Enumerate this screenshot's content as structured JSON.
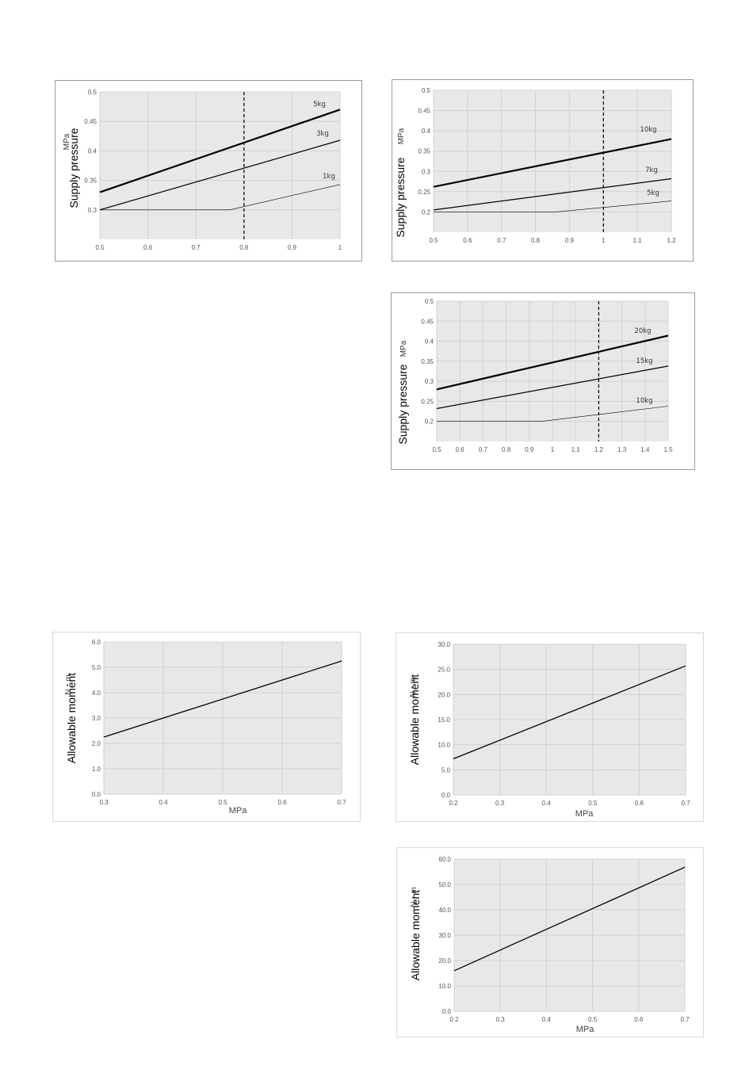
{
  "chart_data": [
    {
      "type": "line",
      "ylabel": "Supply pressure",
      "yunit": "MPa",
      "xlabel": "",
      "xlim": [
        0.5,
        1
      ],
      "ylim": [
        0.25,
        0.5
      ],
      "xticks": [
        "0.5",
        "0.6",
        "0.7",
        "0.8",
        "0.9",
        "1"
      ],
      "yticks": [
        "0.3",
        "0.35",
        "0.4",
        "0.45",
        "0.5"
      ],
      "grid": true,
      "marker_x": 0.8,
      "series": [
        {
          "name": "5kg",
          "x": [
            0.5,
            1
          ],
          "y": [
            0.33,
            0.47
          ],
          "width": 2.2
        },
        {
          "name": "3kg",
          "x": [
            0.5,
            1
          ],
          "y": [
            0.3,
            0.418
          ],
          "width": 1.2
        },
        {
          "name": "1kg",
          "x": [
            0.5,
            0.77,
            1
          ],
          "y": [
            0.3,
            0.3,
            0.343
          ],
          "width": 0.6
        }
      ]
    },
    {
      "type": "line",
      "ylabel": "Supply pressure",
      "yunit": "MPa",
      "xlabel": "",
      "xlim": [
        0.5,
        1.2
      ],
      "ylim": [
        0.15,
        0.5
      ],
      "xticks": [
        "0.5",
        "0.6",
        "0.7",
        "0.8",
        "0.9",
        "1",
        "1.1",
        "1.2"
      ],
      "yticks": [
        "0.2",
        "0.25",
        "0.3",
        "0.35",
        "0.4",
        "0.45",
        "0.5"
      ],
      "grid": true,
      "marker_x": 1,
      "series": [
        {
          "name": "10kg",
          "x": [
            0.5,
            1.2
          ],
          "y": [
            0.262,
            0.38
          ],
          "width": 2.2
        },
        {
          "name": "7kg",
          "x": [
            0.5,
            1.2
          ],
          "y": [
            0.205,
            0.282
          ],
          "width": 1.2
        },
        {
          "name": "5kg",
          "x": [
            0.5,
            0.86,
            1.2
          ],
          "y": [
            0.2,
            0.2,
            0.227
          ],
          "width": 0.6
        }
      ]
    },
    {
      "type": "line",
      "ylabel": "Supply pressure",
      "yunit": "MPa",
      "xlabel": "",
      "xlim": [
        0.5,
        1.5
      ],
      "ylim": [
        0.15,
        0.5
      ],
      "xticks": [
        "0.5",
        "0.6",
        "0.7",
        "0.8",
        "0.9",
        "1",
        "1.1",
        "1.2",
        "1.3",
        "1.4",
        "1.5"
      ],
      "yticks": [
        "0.2",
        "0.25",
        "0.3",
        "0.35",
        "0.4",
        "0.45",
        "0.5"
      ],
      "grid": true,
      "marker_x": 1.2,
      "series": [
        {
          "name": "20kg",
          "x": [
            0.5,
            1.5
          ],
          "y": [
            0.28,
            0.414
          ],
          "width": 2.2
        },
        {
          "name": "15kg",
          "x": [
            0.5,
            1.5
          ],
          "y": [
            0.232,
            0.338
          ],
          "width": 1.2
        },
        {
          "name": "10kg",
          "x": [
            0.5,
            0.95,
            1.5
          ],
          "y": [
            0.2,
            0.2,
            0.238
          ],
          "width": 0.6
        }
      ]
    },
    {
      "type": "line",
      "ylabel": "Allowable moment",
      "yunit": "N・m",
      "xlabel": "MPa",
      "xlim": [
        0.3,
        0.7
      ],
      "ylim": [
        0,
        6
      ],
      "xticks": [
        "0.3",
        "0.4",
        "0.5",
        "0.6",
        "0.7"
      ],
      "yticks": [
        "0.0",
        "1.0",
        "2.0",
        "3.0",
        "4.0",
        "5.0",
        "6.0"
      ],
      "grid": true,
      "series": [
        {
          "name": "",
          "x": [
            0.3,
            0.7
          ],
          "y": [
            2.25,
            5.25
          ],
          "width": 1.3
        }
      ]
    },
    {
      "type": "line",
      "ylabel": "Allowable moment",
      "yunit": "N・m",
      "xlabel": "MPa",
      "xlim": [
        0.2,
        0.7
      ],
      "ylim": [
        0,
        30
      ],
      "xticks": [
        "0.2",
        "0.3",
        "0.4",
        "0.5",
        "0.6",
        "0.7"
      ],
      "yticks": [
        "0.0",
        "5.0",
        "10.0",
        "15.0",
        "20.0",
        "25.0",
        "30.0"
      ],
      "grid": true,
      "series": [
        {
          "name": "",
          "x": [
            0.2,
            0.7
          ],
          "y": [
            7.2,
            25.7
          ],
          "width": 1.3
        }
      ]
    },
    {
      "type": "line",
      "ylabel": "Allowable moment",
      "yunit": "N・m",
      "xlabel": "MPa",
      "xlim": [
        0.2,
        0.7
      ],
      "ylim": [
        0,
        60
      ],
      "xticks": [
        "0.2",
        "0.3",
        "0.4",
        "0.5",
        "0.6",
        "0.7"
      ],
      "yticks": [
        "0.0",
        "10.0",
        "20.0",
        "30.0",
        "40.0",
        "50.0",
        "60.0"
      ],
      "grid": true,
      "series": [
        {
          "name": "",
          "x": [
            0.2,
            0.7
          ],
          "y": [
            16.0,
            56.8
          ],
          "width": 1.3
        }
      ]
    }
  ]
}
